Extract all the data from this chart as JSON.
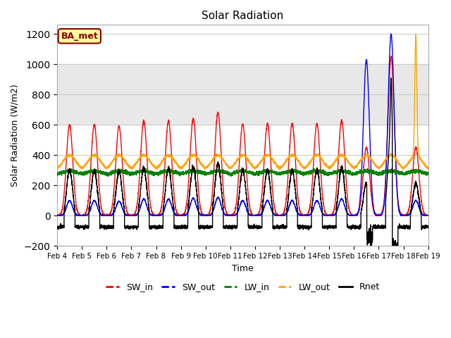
{
  "title": "Solar Radiation",
  "xlabel": "Time",
  "ylabel": "Solar Radiation (W/m2)",
  "ylim": [
    -200,
    1260
  ],
  "yticks": [
    -200,
    0,
    200,
    400,
    600,
    800,
    1000,
    1200
  ],
  "start_day": 4,
  "end_day": 19,
  "num_days": 15,
  "gray_band_lo": 600,
  "gray_band_hi": 1000,
  "colors": {
    "SW_in": "red",
    "SW_out": "blue",
    "LW_in": "green",
    "LW_out": "orange",
    "Rnet": "black"
  },
  "label_box_text": "BA_met",
  "label_box_color": "#FFFFA0",
  "label_box_border": "#8B0000",
  "sw_peaks": [
    600,
    600,
    590,
    625,
    625,
    640,
    680,
    605,
    605,
    605,
    605,
    630,
    450,
    1050,
    450
  ],
  "sw_out_peaks": [
    100,
    100,
    95,
    110,
    110,
    115,
    120,
    100,
    100,
    100,
    100,
    110,
    1030,
    1200,
    100
  ],
  "lw_out_base": 300,
  "lw_out_peak_bump": 100,
  "lw_in_base": 270,
  "lw_in_bump": 25,
  "rnet_night": -75,
  "rnet_day_factor": 0.58
}
